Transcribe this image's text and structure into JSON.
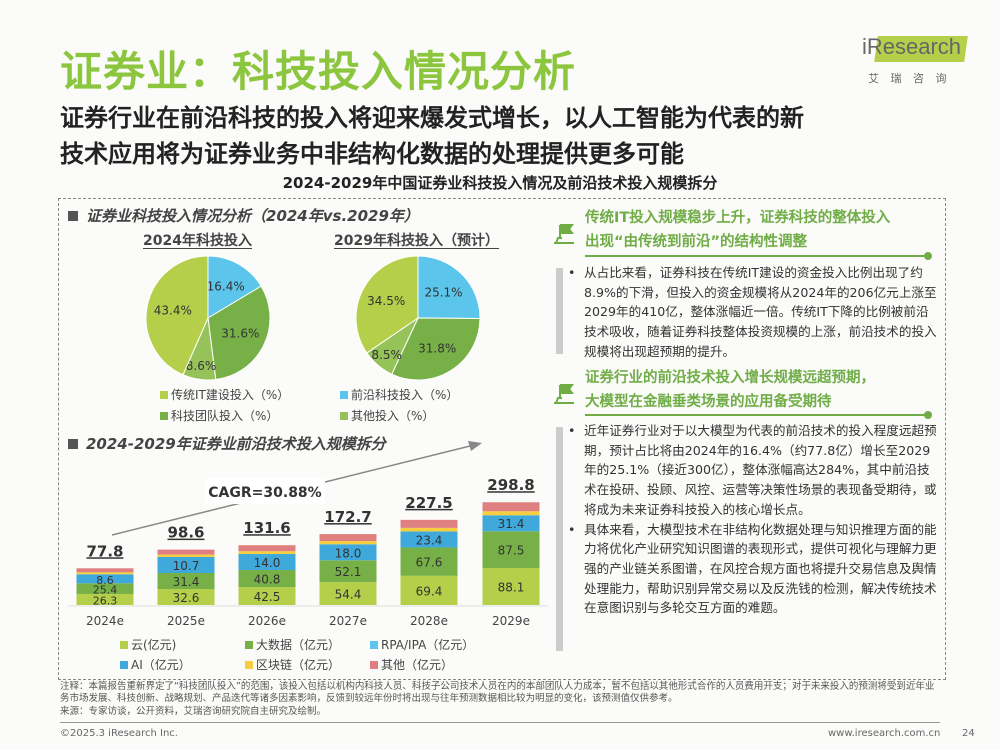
{
  "header": {
    "title": "证券业：科技投入情况分析",
    "subtitle_lines": [
      "证券行业在前沿科技的投入将迎来爆发式增长，以人工智能为代表的新",
      "技术应用将为证券业务中非结构化数据的处理提供更多可能"
    ],
    "chart_title": "2024-2029年中国证券业科技投入情况及前沿技术投入规模拆分"
  },
  "logo": {
    "text": "iResearch",
    "cn": "艾 瑞 咨 询"
  },
  "colors": {
    "accent": "#8cc63f",
    "header_green": "#70ad47",
    "yun": "#b5cf4a",
    "bigdata": "#78b048",
    "rpa": "#5bc5ec",
    "ai": "#3fa9dc",
    "blockchain": "#f5cf3f",
    "other": "#e07f7f"
  },
  "left": {
    "section1": "证券业科技投入情况分析（2024年vs.2029年）",
    "section2": "2024-2029年证券业前沿技术投入规模拆分",
    "cagr": "CAGR=30.88%"
  },
  "chart_data": [
    {
      "type": "pie",
      "title": "2024年科技投入",
      "slices": [
        {
          "name": "前沿科技投入（%）",
          "value": 16.4,
          "label": "16.4%"
        },
        {
          "name": "科技团队投入（%）",
          "value": 31.6,
          "label": "31.6%"
        },
        {
          "name": "其他投入（%）",
          "value": 8.6,
          "label": "8.6%"
        },
        {
          "name": "传统IT建设投入（%）",
          "value": 43.4,
          "label": "43.4%"
        }
      ]
    },
    {
      "type": "pie",
      "title": "2029年科技投入（预计）",
      "slices": [
        {
          "name": "前沿科技投入（%）",
          "value": 25.1,
          "label": "25.1%"
        },
        {
          "name": "科技团队投入（%）",
          "value": 31.8,
          "label": "31.8%"
        },
        {
          "name": "其他投入（%）",
          "value": 8.5,
          "label": "8.5%"
        },
        {
          "name": "传统IT建设投入（%）",
          "value": 34.5,
          "label": "34.5%"
        }
      ],
      "legend": [
        "传统IT建设投入（%）",
        "前沿科技投入（%）",
        "科技团队投入（%）",
        "其他投入（%）"
      ]
    },
    {
      "type": "bar",
      "stacked": true,
      "categories": [
        "2024e",
        "2025e",
        "2026e",
        "2027e",
        "2028e",
        "2029e"
      ],
      "totals": [
        77.8,
        98.6,
        131.6,
        172.7,
        227.5,
        298.8
      ],
      "series": [
        {
          "name": "云(亿元)",
          "values": [
            26.3,
            32.6,
            42.5,
            54.4,
            69.4,
            88.1
          ]
        },
        {
          "name": "大数据（亿元）",
          "values": [
            25.4,
            31.4,
            40.8,
            52.1,
            67.6,
            87.5
          ]
        },
        {
          "name": "RPA/IPA（亿元）",
          "values": [
            null,
            null,
            null,
            null,
            null,
            null
          ]
        },
        {
          "name": "AI（亿元）",
          "values": [
            8.6,
            10.7,
            14.0,
            18.0,
            23.4,
            31.4
          ]
        },
        {
          "name": "区块链（亿元）",
          "values": [
            null,
            null,
            null,
            null,
            null,
            null
          ]
        },
        {
          "name": "其他（亿元）",
          "values": [
            null,
            null,
            null,
            null,
            null,
            null
          ]
        }
      ],
      "annotation": "CAGR=30.88%"
    }
  ],
  "right": {
    "head1": [
      "传统IT投入规模稳步上升，证券科技的整体投入",
      "出现“由传统到前沿”的结构性调整"
    ],
    "bullets1": [
      "从占比来看，证券科技在传统IT建设的资金投入比例出现了约8.9%的下滑，但投入的资金规模将从2024年的206亿元上涨至2029年的410亿，整体涨幅近一倍。传统IT下降的比例被前沿技术吸收，随着证券科技整体投资规模的上涨，前沿技术的投入规模将出现超预期的提升。"
    ],
    "head2": [
      "证券行业的前沿技术投入增长规模远超预期，",
      "大模型在金融垂类场景的应用备受期待"
    ],
    "bullets2": [
      "近年证券行业对于以大模型为代表的前沿技术的投入程度远超预期，预计占比将由2024年的16.4%（约77.8亿）增长至2029年的25.1%（接近300亿），整体涨幅高达284%，其中前沿技术在投研、投顾、风控、运营等决策性场景的表现备受期待，或将成为未来证券科技投入的核心增长点。",
      "具体来看，大模型技术在非结构化数据处理与知识推理方面的能力将优化产业研究知识图谱的表现形式，提供可视化与理解力更强的产业链关系图谱，在风控合规方面也将提升交易信息及舆情处理能力，帮助识别异常交易以及反洗钱的检测，解决传统技术在意图识别与多轮交互方面的难题。"
    ]
  },
  "footer": {
    "notes": [
      "注释：本篇报告重新界定了“科技团队投入”的范围，该投入包括以机构内科技人员、科技子公司技术人员在内的本部团队人力成本，暂不包括以其他形式合作的人员费用开支；对于未来投入的预测将受到近年业务市场发展、科技创新、战略规划、产品迭代等诸多因素影响，反馈到较远年份时将出现与往年预测数据相比较为明显的变化，该预测值仅供参考。",
      "来源：专家访谈，公开资料，艾瑞咨询研究院自主研究及绘制。"
    ],
    "copyright": "©2025.3 iResearch Inc.",
    "website": "www.iresearch.com.cn",
    "page": "24"
  }
}
